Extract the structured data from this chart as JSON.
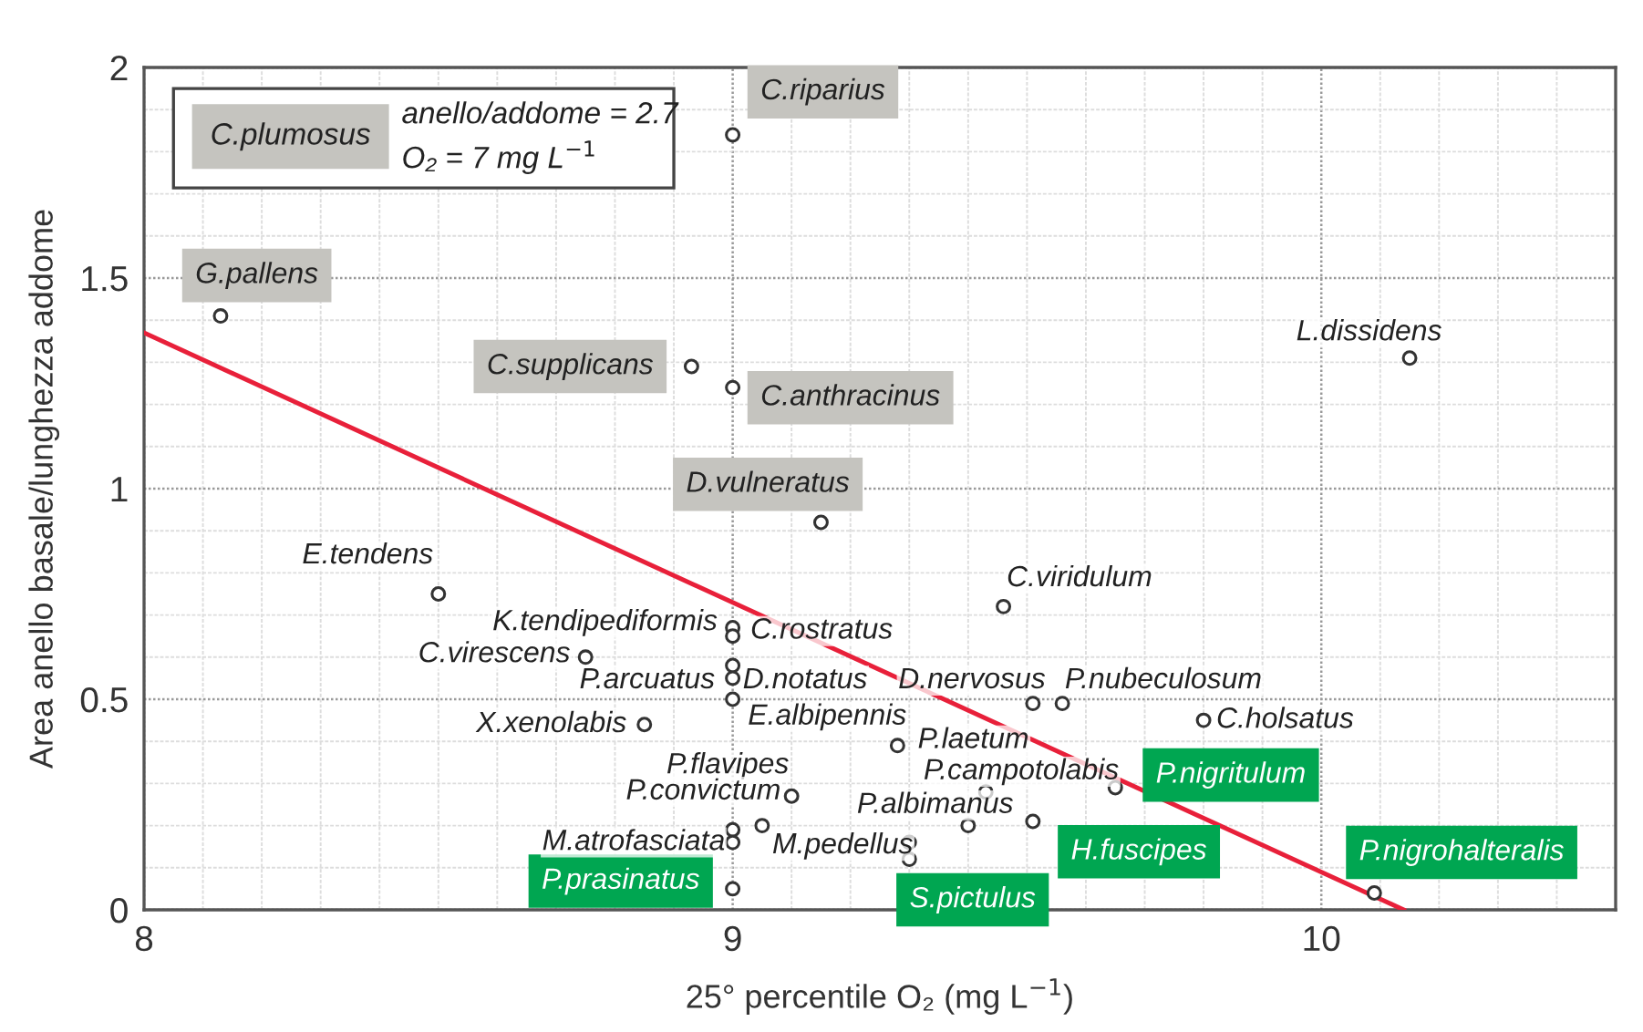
{
  "chart_data": {
    "type": "scatter",
    "xlabel": "25° percentile O₂ (mg L$^{−1}$)",
    "ylabel": "Area anello basale/lunghezza addome",
    "xlim": [
      8,
      10.5
    ],
    "ylim": [
      0,
      2
    ],
    "xticks": [
      8,
      9,
      10
    ],
    "yticks": [
      0,
      0.5,
      1,
      1.5,
      2
    ],
    "grid": true,
    "marker": "circle",
    "annotations": [
      "C.plumosus",
      "anello/addome = 2.7",
      "O₂ = 7 mg L$^{−1}$"
    ],
    "series": [
      {
        "type": "scatter",
        "color": "#333333",
        "x": [
          9.0,
          8.13,
          8.93,
          9.0,
          9.15
        ],
        "values": [
          1.84,
          1.41,
          1.29,
          1.24,
          0.92
        ],
        "value_labels": [
          "C.riparius",
          "G.pallens",
          "C.supplicans",
          "C.anthracinus",
          "D.vulneratus"
        ]
      },
      {
        "type": "scatter",
        "color": "#333333",
        "x": [
          9.65,
          9.51,
          9.0,
          9.3,
          10.09
        ],
        "values": [
          0.29,
          0.21,
          0.05,
          0.12,
          0.04
        ],
        "value_labels": [
          "P.nigritulum",
          "H.fuscipes",
          "P.prasinatus",
          "S.pictulus",
          "P.nigrohalteralis"
        ]
      },
      {
        "type": "scatter",
        "color": "#333333",
        "x": [
          10.15,
          8.5,
          9.0,
          9.0,
          8.75,
          9.0,
          9.0,
          9.0,
          8.85,
          9.46,
          9.51,
          9.56,
          9.8,
          9.28,
          9.1,
          9.43,
          9.4,
          9.0,
          9.0,
          9.05,
          9.3
        ],
        "values": [
          1.31,
          0.75,
          0.67,
          0.65,
          0.6,
          0.58,
          0.55,
          0.5,
          0.44,
          0.72,
          0.49,
          0.49,
          0.45,
          0.39,
          0.27,
          0.28,
          0.2,
          0.19,
          0.16,
          0.2,
          0.16
        ],
        "value_labels": [
          "L.dissidens",
          "E.tendens",
          "K.tendipediformis",
          "C.rostratus",
          "C.virescens",
          "P.arcuatus",
          "D.notatus",
          "E.albipennis",
          "X.xenolabis",
          "C.viridulum",
          "D.nervosus",
          "P.nubeculosum",
          "C.holsatus",
          "P.laetum",
          "P.flavipes",
          "P.campotolabis",
          "P.albimanus",
          "P.convictum",
          "M.atrofasciata",
          "M.pedellus",
          null
        ]
      },
      {
        "type": "line",
        "color": "#e8203a",
        "marker": "none",
        "x": [
          8,
          10.14
        ],
        "values": [
          1.37,
          0
        ]
      }
    ]
  }
}
